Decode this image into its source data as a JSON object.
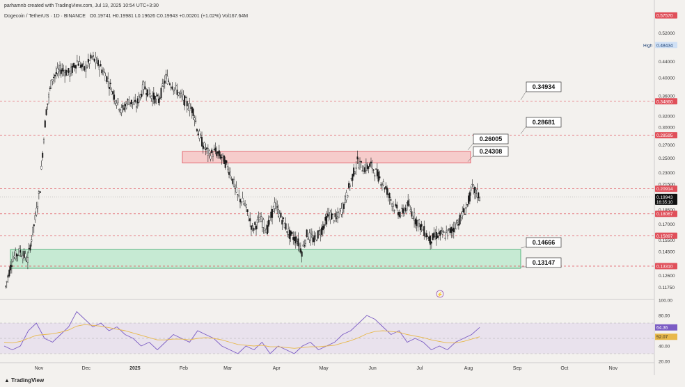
{
  "header": {
    "credit": "parhamnb created with TradingView.com, Jul 13, 2025 10:54 UTC+3:30",
    "symbol": "Dogecoin / TetherUS · 1D · BINANCE",
    "ohlc": "O0.19741  H0.19981  L0.19626  C0.19943  +0.00201 (+1.02%)  Vol167.64M"
  },
  "footer": {
    "brand": "TradingView"
  },
  "colors": {
    "background": "#f3f1ee",
    "candle": "#1a1a1a",
    "dashed_line": "#e0505a",
    "resistance_zone": "#f8b4b4",
    "support_zone": "#a8e6c2",
    "rsi_line": "#7b5cc4",
    "rsi_ma": "#e8b84a",
    "rsi_band": "#e4dcec"
  },
  "chart_data": [
    {
      "type": "candlestick",
      "title": "Dogecoin / TetherUS · 1D · BINANCE",
      "x_tick_labels": [
        "Nov",
        "Dec",
        "2025",
        "Feb",
        "Mar",
        "Apr",
        "May",
        "Jun",
        "Jul",
        "Aug",
        "Sep",
        "Oct",
        "Nov"
      ],
      "y_tick_labels": [
        "0.52000",
        "0.44000",
        "0.40000",
        "0.36000",
        "0.32000",
        "0.30000",
        "0.27000",
        "0.25000",
        "0.23000",
        "0.21500",
        "0.18500",
        "0.17000",
        "0.15500",
        "0.14500",
        "0.12600",
        "0.11750"
      ],
      "axis_badges": [
        {
          "value": "0.57570",
          "color": "#e0505a"
        },
        {
          "value": "0.48434",
          "label": "High",
          "color": "#cfe0f5"
        },
        {
          "value": "0.34860",
          "color": "#e0505a"
        },
        {
          "value": "0.28595",
          "color": "#e0505a"
        },
        {
          "value": "0.20914",
          "color": "#e0505a"
        },
        {
          "value": "0.19943",
          "sub": "16:35:10",
          "color": "#111111"
        },
        {
          "value": "0.18067",
          "color": "#e0505a"
        },
        {
          "value": "0.15897",
          "color": "#e0505a"
        },
        {
          "value": "0.13310",
          "color": "#e0505a"
        }
      ],
      "horizontal_lines": [
        0.3486,
        0.28595,
        0.20914,
        0.18067,
        0.15897,
        0.1331
      ],
      "zones": [
        {
          "name": "resistance",
          "low": 0.24308,
          "high": 0.26005
        },
        {
          "name": "support",
          "low": 0.13147,
          "high": 0.14666
        }
      ],
      "callouts": [
        "0.34934",
        "0.28681",
        "0.26005",
        "0.24308",
        "0.14666",
        "0.13147"
      ],
      "last_price": 0.19943,
      "price_path": [
        [
          0,
          0.118
        ],
        [
          6,
          0.14
        ],
        [
          12,
          0.145
        ],
        [
          18,
          0.138
        ],
        [
          24,
          0.175
        ],
        [
          28,
          0.21
        ],
        [
          33,
          0.33
        ],
        [
          38,
          0.4
        ],
        [
          45,
          0.42
        ],
        [
          52,
          0.41
        ],
        [
          58,
          0.44
        ],
        [
          64,
          0.42
        ],
        [
          70,
          0.45
        ],
        [
          76,
          0.43
        ],
        [
          82,
          0.4
        ],
        [
          88,
          0.36
        ],
        [
          94,
          0.33
        ],
        [
          100,
          0.35
        ],
        [
          106,
          0.34
        ],
        [
          112,
          0.38
        ],
        [
          118,
          0.36
        ],
        [
          124,
          0.35
        ],
        [
          130,
          0.4
        ],
        [
          136,
          0.38
        ],
        [
          142,
          0.36
        ],
        [
          148,
          0.34
        ],
        [
          152,
          0.33
        ],
        [
          156,
          0.29
        ],
        [
          160,
          0.27
        ],
        [
          165,
          0.255
        ],
        [
          170,
          0.26
        ],
        [
          176,
          0.25
        ],
        [
          182,
          0.23
        ],
        [
          188,
          0.2
        ],
        [
          194,
          0.19
        ],
        [
          200,
          0.165
        ],
        [
          206,
          0.175
        ],
        [
          212,
          0.165
        ],
        [
          218,
          0.19
        ],
        [
          224,
          0.175
        ],
        [
          230,
          0.16
        ],
        [
          236,
          0.155
        ],
        [
          240,
          0.145
        ],
        [
          244,
          0.16
        ],
        [
          250,
          0.155
        ],
        [
          256,
          0.165
        ],
        [
          262,
          0.18
        ],
        [
          268,
          0.175
        ],
        [
          274,
          0.19
        ],
        [
          280,
          0.22
        ],
        [
          285,
          0.245
        ],
        [
          290,
          0.235
        ],
        [
          296,
          0.24
        ],
        [
          302,
          0.225
        ],
        [
          308,
          0.21
        ],
        [
          314,
          0.19
        ],
        [
          320,
          0.18
        ],
        [
          326,
          0.19
        ],
        [
          332,
          0.175
        ],
        [
          338,
          0.165
        ],
        [
          344,
          0.155
        ],
        [
          350,
          0.16
        ],
        [
          356,
          0.16
        ],
        [
          362,
          0.165
        ],
        [
          368,
          0.175
        ],
        [
          374,
          0.19
        ],
        [
          378,
          0.21
        ],
        [
          381,
          0.205
        ],
        [
          384,
          0.199
        ]
      ],
      "x_range": [
        0,
        530
      ],
      "y_scale": "log"
    },
    {
      "type": "line",
      "title": "RSI",
      "y_tick_labels": [
        "100.00",
        "80.00",
        "40.00",
        "20.00"
      ],
      "series": [
        {
          "values": [
            40,
            35,
            40,
            60,
            70,
            50,
            45,
            55,
            65,
            85,
            75,
            65,
            70,
            60,
            65,
            55,
            50,
            40,
            45,
            35,
            45,
            55,
            50,
            45,
            60,
            55,
            50,
            40,
            35,
            30,
            40,
            35,
            45,
            30,
            40,
            35,
            30,
            40,
            45,
            35,
            40,
            45,
            55,
            60,
            70,
            80,
            75,
            65,
            55,
            60,
            45,
            50,
            45,
            35,
            40,
            35,
            45,
            50,
            55,
            64.36
          ]
        },
        {
          "values": [
            45,
            44,
            46,
            50,
            54,
            55,
            56,
            58,
            61,
            66,
            68,
            67,
            66,
            64,
            62,
            60,
            57,
            54,
            51,
            48,
            48,
            49,
            49,
            48,
            50,
            51,
            50,
            48,
            45,
            42,
            41,
            40,
            41,
            39,
            39,
            38,
            37,
            38,
            39,
            39,
            40,
            41,
            44,
            47,
            51,
            56,
            59,
            60,
            59,
            58,
            55,
            53,
            51,
            48,
            46,
            44,
            44,
            46,
            49,
            52.07
          ]
        }
      ],
      "current_rsi": "64.36",
      "current_ma": "52.07",
      "y_range": [
        20,
        100
      ]
    }
  ]
}
